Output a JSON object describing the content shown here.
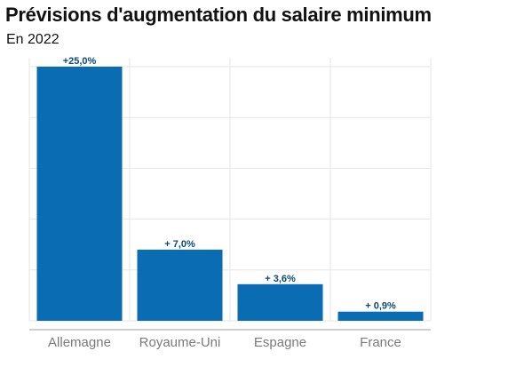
{
  "chart_data": {
    "type": "bar",
    "title": "Prévisions d'augmentation du salaire minimum",
    "subtitle": "En 2022",
    "categories": [
      "Allemagne",
      "Royaume-Uni",
      "Espagne",
      "France"
    ],
    "values": [
      25.0,
      7.0,
      3.6,
      0.9
    ],
    "data_labels": [
      "+25,0%",
      "+ 7,0%",
      "+ 3,6%",
      "+ 0,9%"
    ],
    "xlabel": "",
    "ylabel": "",
    "ylim": [
      0,
      25
    ],
    "grid": true,
    "colors": {
      "bar": "#0a6db3",
      "label": "#0a4a7a",
      "grid": "#e6e6e6",
      "axis": "#bdbdbd"
    }
  }
}
